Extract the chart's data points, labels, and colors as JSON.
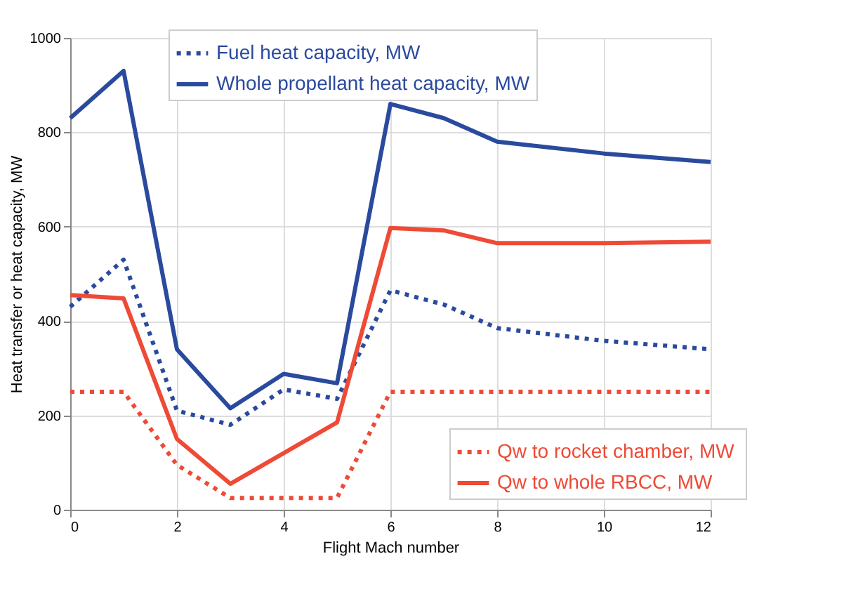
{
  "chart_data": {
    "type": "line",
    "xlabel": "Flight Mach number",
    "ylabel": "Heat transfer or heat capacity,  MW",
    "x": [
      0,
      1,
      2,
      3,
      4,
      5,
      6,
      7,
      8,
      10,
      12
    ],
    "series": [
      {
        "name": "Fuel heat capacity, MW",
        "color": "#2a4a9e",
        "line_style": "dotted",
        "values": [
          430,
          530,
          210,
          180,
          255,
          235,
          465,
          435,
          385,
          358,
          340
        ]
      },
      {
        "name": "Whole propellant heat capacity, MW",
        "color": "#2a4a9e",
        "line_style": "solid",
        "values": [
          830,
          930,
          340,
          215,
          288,
          268,
          860,
          830,
          780,
          755,
          737
        ]
      },
      {
        "name": "Qw to rocket chamber,  MW",
        "color": "#ee4a36",
        "line_style": "dotted",
        "values": [
          250,
          250,
          95,
          25,
          25,
          25,
          250,
          250,
          250,
          250,
          250
        ]
      },
      {
        "name": "Qw to whole RBCC,  MW",
        "color": "#ee4a36",
        "line_style": "solid",
        "values": [
          455,
          448,
          150,
          55,
          120,
          185,
          597,
          592,
          565,
          565,
          568
        ]
      }
    ],
    "xlim": [
      0,
      12
    ],
    "xticks": [
      0,
      2,
      4,
      6,
      8,
      10,
      12
    ],
    "ylim": [
      0,
      1000
    ],
    "yticks": [
      0,
      200,
      400,
      600,
      800,
      1000
    ],
    "grid": true,
    "legend": "top"
  }
}
